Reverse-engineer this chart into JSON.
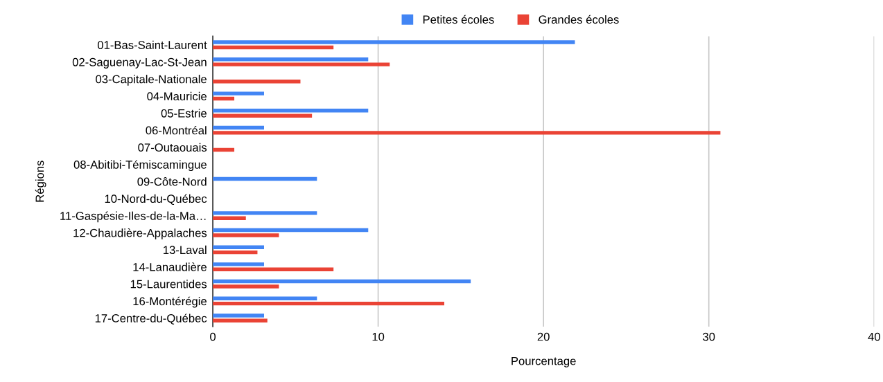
{
  "chart_data": {
    "type": "bar",
    "orientation": "horizontal",
    "xlabel": "Pourcentage",
    "ylabel": "Régions",
    "categories": [
      "01-Bas-Saint-Laurent",
      "02-Saguenay-Lac-St-Jean",
      "03-Capitale-Nationale",
      "04-Mauricie",
      "05-Estrie",
      "06-Montréal",
      "07-Outaouais",
      "08-Abitibi-Témiscamingue",
      "09-Côte-Nord",
      "10-Nord-du-Québec",
      "11-Gaspésie-Iles-de-la-Ma…",
      "12-Chaudière-Appalaches",
      "13-Laval",
      "14-Lanaudière",
      "15-Laurentides",
      "16-Montérégie",
      "17-Centre-du-Québec"
    ],
    "series": [
      {
        "name": "Petites écoles",
        "color": "#4285f4",
        "values": [
          21.9,
          9.4,
          0,
          3.1,
          9.4,
          3.1,
          0,
          0,
          6.3,
          0,
          6.3,
          9.4,
          3.1,
          3.1,
          15.6,
          6.3,
          3.1
        ]
      },
      {
        "name": "Grandes écoles",
        "color": "#ea4335",
        "values": [
          7.3,
          10.7,
          5.3,
          1.3,
          6.0,
          30.7,
          1.3,
          0,
          0,
          0,
          2.0,
          4.0,
          2.7,
          7.3,
          4.0,
          14.0,
          3.3
        ]
      }
    ],
    "xlim": [
      0,
      40
    ],
    "xticks": [
      0,
      10,
      20,
      30,
      40
    ],
    "grid": "x",
    "legend": "top"
  }
}
